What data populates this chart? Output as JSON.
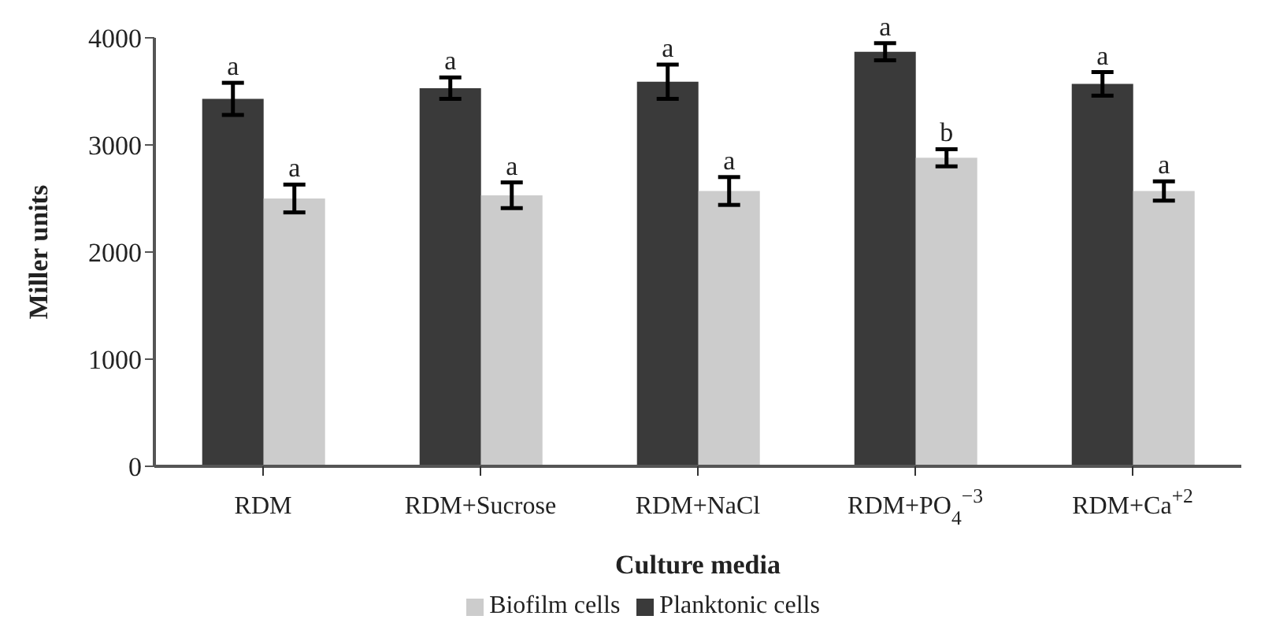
{
  "chart_data": {
    "type": "bar",
    "xlabel": "Culture media",
    "ylabel": "Miller units",
    "categories": [
      "RDM",
      "RDM+Sucrose",
      "RDM+NaCl",
      "RDM+PO$_{4}$$^{−3}$",
      "RDM+Ca$^{+2}$"
    ],
    "series": [
      {
        "name": "Planktonic cells",
        "color": "#3a3a3a",
        "values": [
          3430,
          3530,
          3590,
          3870,
          3570
        ],
        "errors": [
          150,
          100,
          160,
          80,
          110
        ]
      },
      {
        "name": "Biofilm cells",
        "color": "#cccccc",
        "values": [
          2500,
          2530,
          2570,
          2880,
          2570
        ],
        "errors": [
          130,
          120,
          130,
          80,
          90
        ]
      }
    ],
    "annotations": [
      {
        "text": "a",
        "x": "RDM",
        "y": 3430
      },
      {
        "text": "a",
        "x": "RDM",
        "y": 2500
      },
      {
        "text": "a",
        "x": "RDM+Sucrose",
        "y": 3530
      },
      {
        "text": "a",
        "x": "RDM+Sucrose",
        "y": 2530
      },
      {
        "text": "a",
        "x": "RDM+NaCl",
        "y": 3590
      },
      {
        "text": "a",
        "x": "RDM+NaCl",
        "y": 2570
      },
      {
        "text": "a",
        "x": "RDM+PO$_{4}$$^{−3}$",
        "y": 3870
      },
      {
        "text": "b",
        "x": "RDM+PO$_{4}$$^{−3}$",
        "y": 2880
      },
      {
        "text": "a",
        "x": "RDM+Ca$^{+2}$",
        "y": 3570
      },
      {
        "text": "a",
        "x": "RDM+Ca$^{+2}$",
        "y": 2570
      }
    ],
    "ylim": [
      0,
      4000
    ],
    "yticks": [
      0,
      1000,
      2000,
      3000,
      4000
    ],
    "grid": false,
    "legend": "bottom"
  }
}
